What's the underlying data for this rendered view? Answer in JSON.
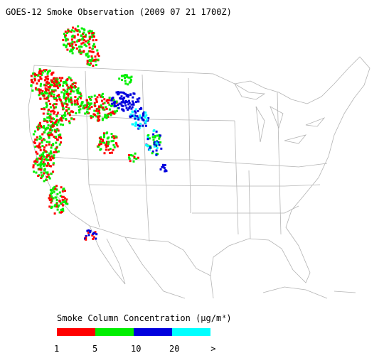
{
  "title": "GOES-12 Smoke Observation (2009 07 21  1700Z)",
  "legend": {
    "title": "Smoke Column Concentration (μg/m³)",
    "colors": [
      "#ff0000",
      "#00ee00",
      "#0000dd",
      "#00ffff"
    ],
    "labels": [
      "1",
      "5",
      "10",
      "20",
      ">"
    ]
  }
}
